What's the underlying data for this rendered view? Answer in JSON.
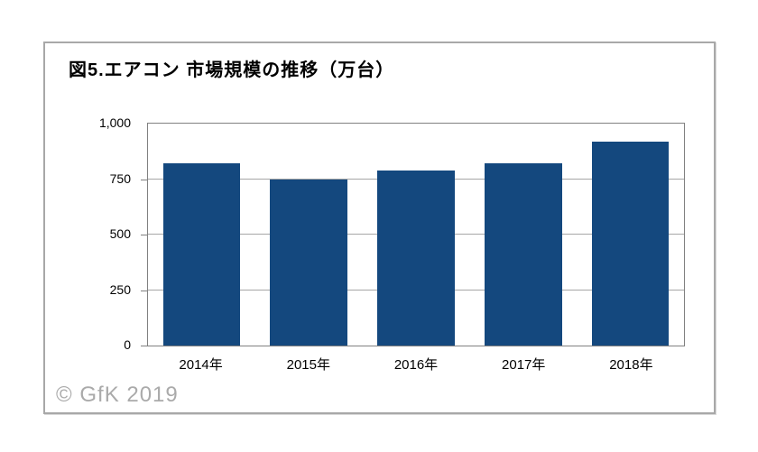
{
  "title": "図5.エアコン 市場規模の推移（万台）",
  "watermark": "© GfK 2019",
  "colors": {
    "bar": "#14487E",
    "plot_border": "#808080",
    "gridline": "#A6A6A6",
    "box_border": "#A8A8A8",
    "watermark": "#AAAAAA",
    "text": "#000000"
  },
  "chart_data": {
    "type": "bar",
    "title": "図5.エアコン 市場規模の推移（万台）",
    "categories": [
      "2014年",
      "2015年",
      "2016年",
      "2017年",
      "2018年"
    ],
    "values": [
      820,
      750,
      790,
      820,
      920
    ],
    "xlabel": "",
    "ylabel": "",
    "ylim": [
      0,
      1000
    ],
    "yticks": [
      {
        "value": 1000,
        "label": "1,000"
      },
      {
        "value": 750,
        "label": "750"
      },
      {
        "value": 500,
        "label": "500"
      },
      {
        "value": 250,
        "label": "250"
      },
      {
        "value": 0,
        "label": "0"
      }
    ],
    "grid": true,
    "legend": "none",
    "bar_color": "#14487E"
  }
}
